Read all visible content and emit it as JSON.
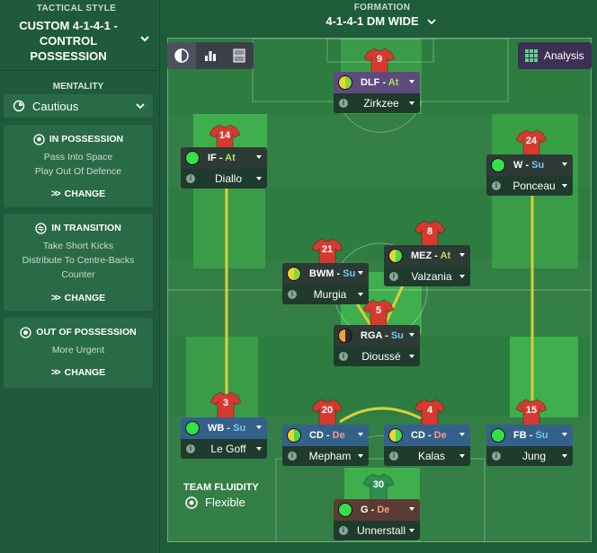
{
  "sidebar": {
    "tactical_style_label": "TACTICAL STYLE",
    "tactical_style_name": "CUSTOM 4-1-4-1 - CONTROL POSSESSION",
    "mentality_label": "MENTALITY",
    "mentality_value": "Cautious",
    "panels": [
      {
        "title": "IN POSSESSION",
        "lines": [
          "Pass Into Space",
          "Play Out Of Defence"
        ],
        "change": "CHANGE"
      },
      {
        "title": "IN TRANSITION",
        "lines": [
          "Take Short Kicks",
          "Distribute To Centre-Backs",
          "Counter"
        ],
        "change": "CHANGE"
      },
      {
        "title": "OUT OF POSSESSION",
        "lines": [
          "More Urgent"
        ],
        "change": "CHANGE"
      }
    ]
  },
  "header": {
    "formation_label": "FORMATION",
    "formation_value": "4-1-4-1 DM WIDE"
  },
  "toolbar": {
    "analysis_label": "Analysis",
    "icons": [
      "contrast-icon",
      "bar-chart-icon",
      "pitch-icon",
      "grid-icon"
    ]
  },
  "team_fluidity": {
    "label": "TEAM FLUIDITY",
    "value": "Flexible"
  },
  "colors": {
    "attack": "#a8e060",
    "support": "#79c4f2",
    "defend": "#f39a8d",
    "shirt": "#d63a2f",
    "link_line": "#d9cf3a"
  },
  "players": [
    {
      "id": "dlf",
      "number": "9",
      "role": "DLF",
      "duty": "At",
      "name": "Zirkzee",
      "role_color": "#5f4a7e",
      "dot": "half-yellow"
    },
    {
      "id": "if",
      "number": "14",
      "role": "IF",
      "duty": "At",
      "name": "Diallo",
      "role_color": "#2e3a36",
      "dot": "green"
    },
    {
      "id": "w",
      "number": "24",
      "role": "W",
      "duty": "Su",
      "name": "Ponceau",
      "role_color": "#2e3a36",
      "dot": "green"
    },
    {
      "id": "bwm",
      "number": "21",
      "role": "BWM",
      "duty": "Su",
      "name": "Murgia",
      "role_color": "#2e3a36",
      "dot": "half-yellow"
    },
    {
      "id": "mez",
      "number": "8",
      "role": "MEZ",
      "duty": "At",
      "name": "Valzania",
      "role_color": "#2e3a36",
      "dot": "half-green"
    },
    {
      "id": "rga",
      "number": "5",
      "role": "RGA",
      "duty": "Su",
      "name": "Dioussé",
      "role_color": "#2e3a36",
      "dot": "half-orange"
    },
    {
      "id": "wb",
      "number": "3",
      "role": "WB",
      "duty": "Su",
      "name": "Le Goff",
      "role_color": "#34618a",
      "dot": "green"
    },
    {
      "id": "cd1",
      "number": "20",
      "role": "CD",
      "duty": "De",
      "name": "Mepham",
      "role_color": "#34618a",
      "dot": "half-green"
    },
    {
      "id": "cd2",
      "number": "4",
      "role": "CD",
      "duty": "De",
      "name": "Kalas",
      "role_color": "#34618a",
      "dot": "half-green"
    },
    {
      "id": "fb",
      "number": "15",
      "role": "FB",
      "duty": "Su",
      "name": "Jung",
      "role_color": "#34618a",
      "dot": "green"
    },
    {
      "id": "gk",
      "number": "30",
      "role": "G",
      "duty": "De",
      "name": "Unnerstall",
      "role_color": "#5a3c32",
      "dot": "green"
    }
  ]
}
